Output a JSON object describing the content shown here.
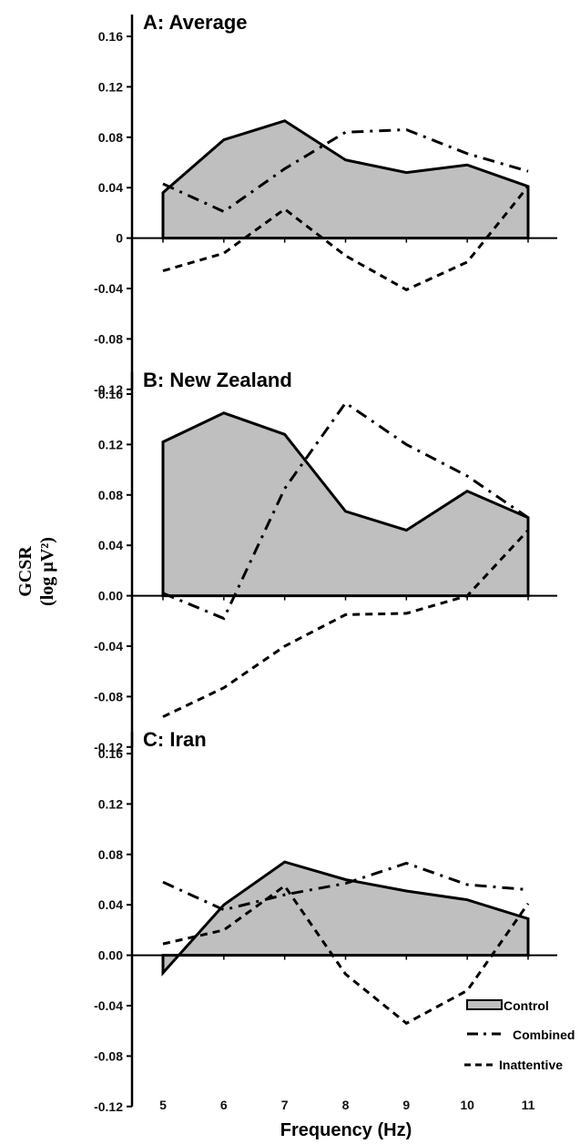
{
  "chart_data": {
    "type": "area",
    "ylabel_line1": "GCSR",
    "ylabel_line2": "(log µV²)",
    "xlabel": "Frequency (Hz)",
    "x": [
      5,
      6,
      7,
      8,
      9,
      10,
      11
    ],
    "x_tick_labels": [
      "5",
      "6",
      "7",
      "8",
      "9",
      "10",
      "11"
    ],
    "ylim": [
      -0.12,
      0.16
    ],
    "legend": {
      "position": "bottom-right",
      "entries": [
        "Control",
        "Combined",
        "Inattentive"
      ]
    },
    "panels": [
      {
        "title": "A: Average",
        "y_tick_labels": [
          "0.16",
          "0.12",
          "0.08",
          "0.04",
          "0",
          "-0.04",
          "-0.08",
          "-0.12"
        ],
        "y_ticks": [
          0.16,
          0.12,
          0.08,
          0.04,
          0,
          -0.04,
          -0.08,
          -0.12
        ],
        "series": [
          {
            "name": "Control",
            "values": [
              0.036,
              0.078,
              0.093,
              0.062,
              0.052,
              0.058,
              0.041
            ]
          },
          {
            "name": "Combined",
            "values": [
              0.043,
              0.021,
              0.055,
              0.084,
              0.086,
              0.067,
              0.053
            ]
          },
          {
            "name": "Inattentive",
            "values": [
              -0.026,
              -0.012,
              0.023,
              -0.014,
              -0.041,
              -0.019,
              0.041
            ]
          }
        ]
      },
      {
        "title": "B: New Zealand",
        "y_tick_labels": [
          "0.16",
          "0.12",
          "0.08",
          "0.04",
          "0.00",
          "-0.04",
          "-0.08",
          "-0.12"
        ],
        "y_ticks": [
          0.16,
          0.12,
          0.08,
          0.04,
          0,
          -0.04,
          -0.08,
          -0.12
        ],
        "series": [
          {
            "name": "Control",
            "values": [
              0.122,
              0.145,
              0.128,
              0.067,
              0.052,
              0.083,
              0.062
            ]
          },
          {
            "name": "Combined",
            "values": [
              0.002,
              -0.018,
              0.085,
              0.153,
              0.12,
              0.095,
              0.062
            ]
          },
          {
            "name": "Inattentive",
            "values": [
              -0.096,
              -0.073,
              -0.04,
              -0.015,
              -0.014,
              0.0,
              0.052
            ]
          }
        ]
      },
      {
        "title": "C: Iran",
        "y_tick_labels": [
          "0.16",
          "0.12",
          "0.08",
          "0.04",
          "0.00",
          "-0.04",
          "-0.08",
          "-0.12"
        ],
        "y_ticks": [
          0.16,
          0.12,
          0.08,
          0.04,
          0,
          -0.04,
          -0.08,
          -0.12
        ],
        "series": [
          {
            "name": "Control",
            "values": [
              -0.014,
              0.04,
              0.074,
              0.06,
              0.051,
              0.044,
              0.029
            ]
          },
          {
            "name": "Combined",
            "values": [
              0.058,
              0.036,
              0.048,
              0.057,
              0.073,
              0.056,
              0.052
            ]
          },
          {
            "name": "Inattentive",
            "values": [
              0.009,
              0.02,
              0.055,
              -0.015,
              -0.054,
              -0.028,
              0.041
            ]
          }
        ]
      }
    ]
  }
}
